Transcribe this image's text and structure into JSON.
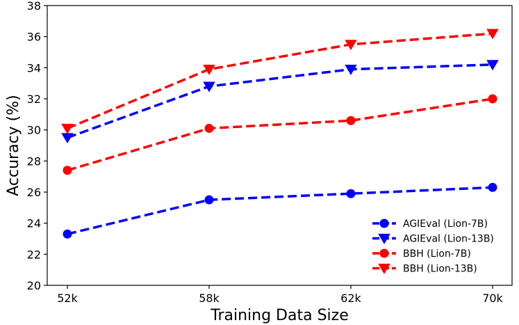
{
  "chart_data": {
    "type": "line",
    "title": "",
    "xlabel": "Training Data Size",
    "ylabel": "Accuracy (%)",
    "categories": [
      "52k",
      "58k",
      "62k",
      "70k"
    ],
    "ylim": [
      20,
      38
    ],
    "yticks": [
      20,
      22,
      24,
      26,
      28,
      30,
      32,
      34,
      36,
      38
    ],
    "grid": false,
    "legend_position": "lower-right",
    "series": [
      {
        "name": "AGIEval (Lion-7B)",
        "values": [
          23.3,
          25.5,
          25.9,
          26.3
        ],
        "color": "#0000ff",
        "marker": "circle"
      },
      {
        "name": "AGIEval (Lion-13B)",
        "values": [
          29.5,
          32.8,
          33.9,
          34.2
        ],
        "color": "#0000ff",
        "marker": "triangle-down"
      },
      {
        "name": "BBH (Lion-7B)",
        "values": [
          27.4,
          30.1,
          30.6,
          32.0
        ],
        "color": "#ff0000",
        "marker": "circle"
      },
      {
        "name": "BBH (Lion-13B)",
        "values": [
          30.1,
          33.9,
          35.5,
          36.2
        ],
        "color": "#ff0000",
        "marker": "triangle-down"
      }
    ]
  }
}
